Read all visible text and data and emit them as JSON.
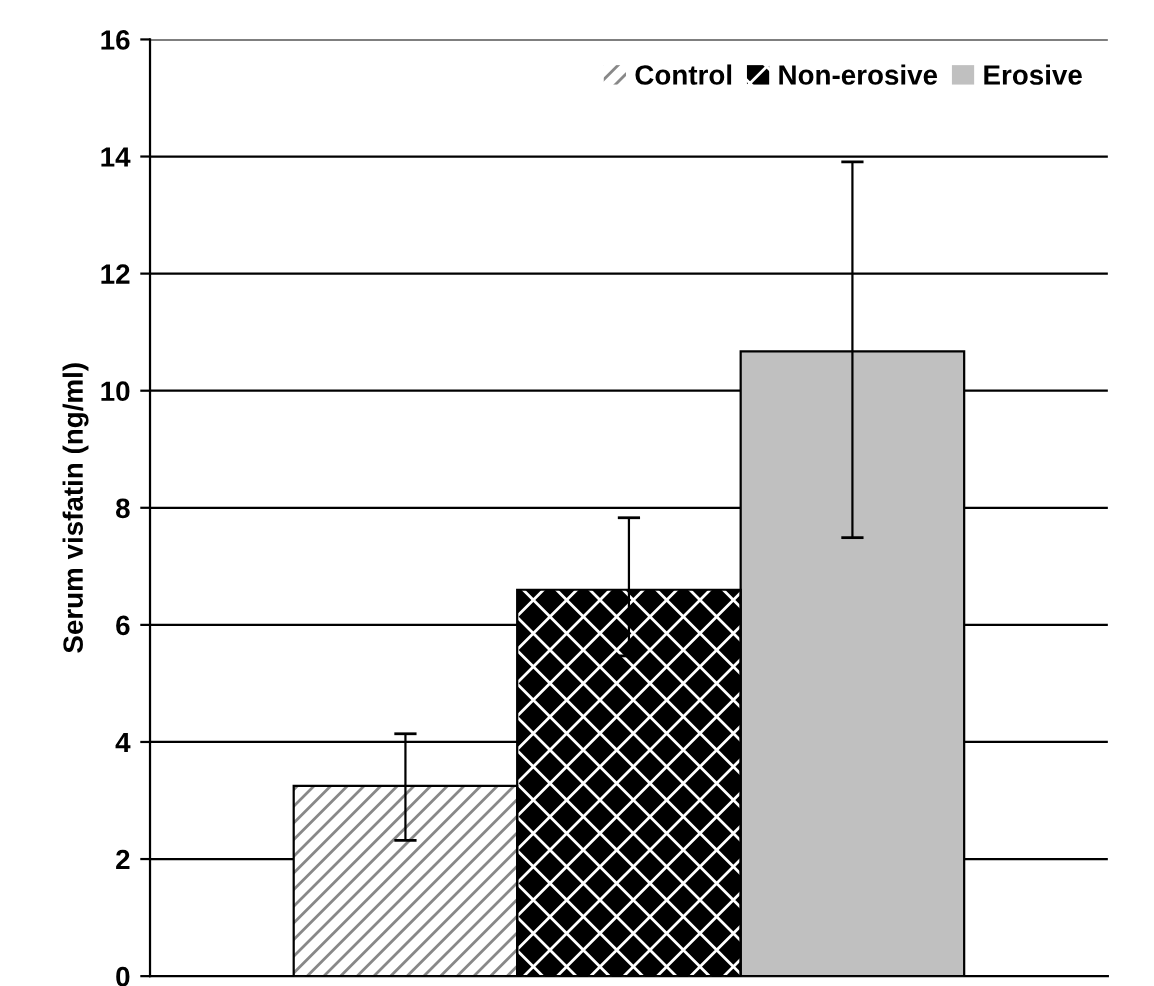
{
  "chart_data": {
    "type": "bar",
    "ylabel": "Serum visfatin (ng/ml)",
    "categories": [
      null
    ],
    "series": [
      {
        "name": "Control",
        "color": "#ffffff",
        "values": [
          3.25
        ],
        "errors": [
          [
            2.32,
            4.14
          ]
        ]
      },
      {
        "name": "Non-erosive",
        "color": "#000000",
        "values": [
          6.6
        ],
        "errors": [
          [
            5.47,
            7.83
          ]
        ]
      },
      {
        "name": "Erosive",
        "color": "#c0c0c0",
        "values": [
          10.67
        ],
        "errors": [
          [
            7.49,
            13.91
          ]
        ]
      }
    ],
    "ylim": [
      0,
      16
    ],
    "yticks": [
      0,
      2,
      4,
      6,
      8,
      10,
      12,
      14,
      16
    ],
    "grid": "y",
    "legend": "top right"
  }
}
